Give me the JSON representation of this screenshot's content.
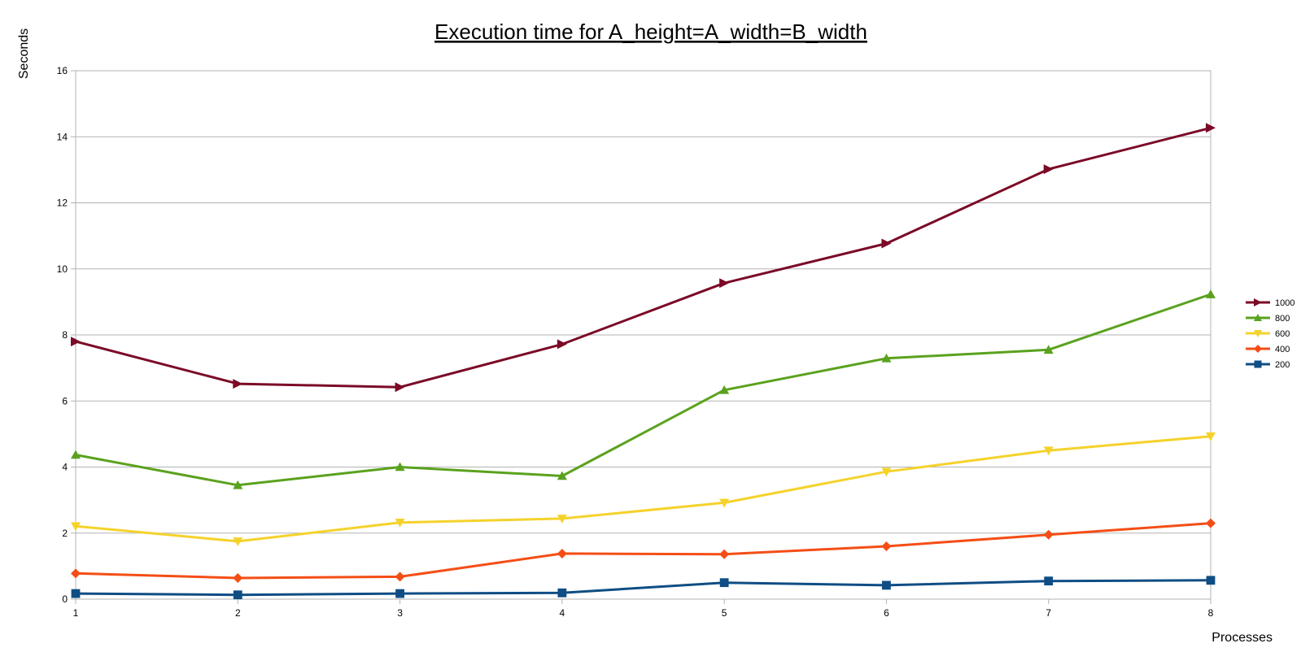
{
  "chart_data": {
    "type": "line",
    "title": "Execution time for A_height=A_width=B_width",
    "xlabel": "Processes",
    "ylabel": "Seconds",
    "x": [
      1,
      2,
      3,
      4,
      5,
      6,
      7,
      8
    ],
    "x_ticks": [
      "1",
      "2",
      "3",
      "4",
      "5",
      "6",
      "7",
      "8"
    ],
    "y_ticks": [
      "0",
      "2",
      "4",
      "6",
      "8",
      "10",
      "12",
      "14",
      "16"
    ],
    "xlim": [
      1,
      8
    ],
    "ylim": [
      0,
      16
    ],
    "grid": "horizontal",
    "legend_position": "right",
    "series": [
      {
        "name": "1000",
        "color": "#7b0a27",
        "marker": "triangle-right",
        "values": [
          7.8,
          6.52,
          6.42,
          7.72,
          9.57,
          10.77,
          13.02,
          14.27
        ]
      },
      {
        "name": "800",
        "color": "#5aa21e",
        "marker": "triangle-up",
        "values": [
          4.37,
          3.45,
          4.0,
          3.73,
          6.33,
          7.29,
          7.55,
          9.23
        ]
      },
      {
        "name": "600",
        "color": "#f5d22b",
        "marker": "triangle-down",
        "values": [
          2.21,
          1.75,
          2.32,
          2.44,
          2.92,
          3.86,
          4.5,
          4.93
        ]
      },
      {
        "name": "400",
        "color": "#f44e16",
        "marker": "diamond",
        "values": [
          0.78,
          0.64,
          0.68,
          1.38,
          1.36,
          1.6,
          1.95,
          2.3
        ]
      },
      {
        "name": "200",
        "color": "#0f4d84",
        "marker": "square",
        "values": [
          0.17,
          0.13,
          0.17,
          0.19,
          0.5,
          0.42,
          0.55,
          0.57
        ]
      }
    ]
  }
}
